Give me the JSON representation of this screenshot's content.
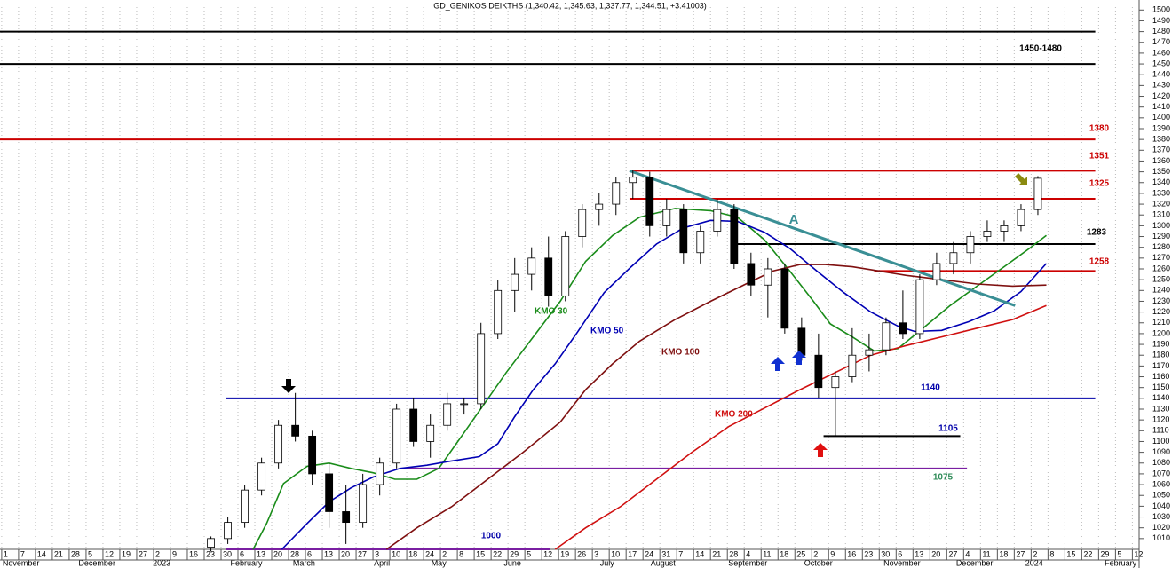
{
  "chart_data": {
    "type": "candlestick",
    "title": "GD_GENIKOS DEIKTHS (1,340.42, 1,345.63, 1,337.77, 1,344.51, +3.41003)",
    "xlim": [
      -0.1,
      67.4
    ],
    "ylim": [
      1000,
      1506
    ],
    "yticks": [
      1010,
      1020,
      1030,
      1040,
      1050,
      1060,
      1070,
      1080,
      1090,
      1100,
      1110,
      1120,
      1130,
      1140,
      1150,
      1160,
      1170,
      1180,
      1190,
      1200,
      1210,
      1220,
      1230,
      1240,
      1250,
      1260,
      1270,
      1280,
      1290,
      1300,
      1310,
      1320,
      1330,
      1340,
      1350,
      1360,
      1370,
      1380,
      1390,
      1400,
      1410,
      1420,
      1430,
      1440,
      1450,
      1460,
      1470,
      1480,
      1490,
      1500
    ],
    "xticks": [
      {
        "value": 0,
        "label": "1"
      },
      {
        "value": 1,
        "label": "7"
      },
      {
        "value": 2,
        "label": "14"
      },
      {
        "value": 3,
        "label": "21"
      },
      {
        "value": 4,
        "label": "28"
      },
      {
        "value": 5,
        "label": "5"
      },
      {
        "value": 6,
        "label": "12"
      },
      {
        "value": 7,
        "label": "19"
      },
      {
        "value": 8,
        "label": "27"
      },
      {
        "value": 9,
        "label": "2"
      },
      {
        "value": 10,
        "label": "9"
      },
      {
        "value": 11,
        "label": "16"
      },
      {
        "value": 12,
        "label": "23"
      },
      {
        "value": 13,
        "label": "30"
      },
      {
        "value": 14,
        "label": "6"
      },
      {
        "value": 15,
        "label": "13"
      },
      {
        "value": 16,
        "label": "20"
      },
      {
        "value": 17,
        "label": "28"
      },
      {
        "value": 18,
        "label": "6"
      },
      {
        "value": 19,
        "label": "13"
      },
      {
        "value": 20,
        "label": "20"
      },
      {
        "value": 21,
        "label": "27"
      },
      {
        "value": 22,
        "label": "3"
      },
      {
        "value": 23,
        "label": "10"
      },
      {
        "value": 24,
        "label": "18"
      },
      {
        "value": 25,
        "label": "24"
      },
      {
        "value": 26,
        "label": "2"
      },
      {
        "value": 27,
        "label": "8"
      },
      {
        "value": 28,
        "label": "15"
      },
      {
        "value": 29,
        "label": "22"
      },
      {
        "value": 30,
        "label": "29"
      },
      {
        "value": 31,
        "label": "5"
      },
      {
        "value": 32,
        "label": "12"
      },
      {
        "value": 33,
        "label": "19"
      },
      {
        "value": 34,
        "label": "26"
      },
      {
        "value": 35,
        "label": "3"
      },
      {
        "value": 36,
        "label": "10"
      },
      {
        "value": 37,
        "label": "17"
      },
      {
        "value": 38,
        "label": "24"
      },
      {
        "value": 39,
        "label": "31"
      },
      {
        "value": 40,
        "label": "7"
      },
      {
        "value": 41,
        "label": "14"
      },
      {
        "value": 42,
        "label": "21"
      },
      {
        "value": 43,
        "label": "28"
      },
      {
        "value": 44,
        "label": "4"
      },
      {
        "value": 45,
        "label": "11"
      },
      {
        "value": 46,
        "label": "18"
      },
      {
        "value": 47,
        "label": "25"
      },
      {
        "value": 48,
        "label": "2"
      },
      {
        "value": 49,
        "label": "9"
      },
      {
        "value": 50,
        "label": "16"
      },
      {
        "value": 51,
        "label": "23"
      },
      {
        "value": 52,
        "label": "30"
      },
      {
        "value": 53,
        "label": "6"
      },
      {
        "value": 54,
        "label": "13"
      },
      {
        "value": 55,
        "label": "20"
      },
      {
        "value": 56,
        "label": "27"
      },
      {
        "value": 57,
        "label": "4"
      },
      {
        "value": 58,
        "label": "11"
      },
      {
        "value": 59,
        "label": "18"
      },
      {
        "value": 60,
        "label": "27"
      },
      {
        "value": 61,
        "label": "2"
      },
      {
        "value": 62,
        "label": "8"
      },
      {
        "value": 63,
        "label": "15"
      },
      {
        "value": 64,
        "label": "22"
      },
      {
        "value": 65,
        "label": "29"
      },
      {
        "value": 66,
        "label": "5"
      },
      {
        "value": 67,
        "label": "12"
      }
    ],
    "month_labels": [
      {
        "value": 0,
        "label": "November"
      },
      {
        "value": 4.5,
        "label": "December"
      },
      {
        "value": 8.9,
        "label": "2023"
      },
      {
        "value": 13.5,
        "label": "February"
      },
      {
        "value": 17.2,
        "label": "March"
      },
      {
        "value": 22,
        "label": "April"
      },
      {
        "value": 25.4,
        "label": "May"
      },
      {
        "value": 29.7,
        "label": "June"
      },
      {
        "value": 35.4,
        "label": "July"
      },
      {
        "value": 38.4,
        "label": "August"
      },
      {
        "value": 43,
        "label": "September"
      },
      {
        "value": 47.5,
        "label": "October"
      },
      {
        "value": 52.2,
        "label": "November"
      },
      {
        "value": 56.5,
        "label": "December"
      },
      {
        "value": 60.6,
        "label": "2024"
      },
      {
        "value": 65.3,
        "label": "February"
      }
    ],
    "grid": true,
    "ohlc": {
      "color_up": "#ffffff",
      "color_down": "#000000",
      "x": [
        12.4,
        13.4,
        14.4,
        15.4,
        16.4,
        17.4,
        18.4,
        19.4,
        20.4,
        21.4,
        22.4,
        23.4,
        24.4,
        25.4,
        26.4,
        27.4,
        28.4,
        29.4,
        30.4,
        31.4,
        32.4,
        33.4,
        34.4,
        35.4,
        36.4,
        37.4,
        38.4,
        39.4,
        40.4,
        41.4,
        42.4,
        43.4,
        44.4,
        45.4,
        46.4,
        47.4,
        48.4,
        49.4,
        50.4,
        51.4,
        52.4,
        53.4,
        54.4,
        55.4,
        56.4,
        57.4,
        58.4,
        59.4,
        60.4,
        61.4
      ],
      "open": [
        1002,
        1010,
        1025,
        1055,
        1080,
        1115,
        1105,
        1070,
        1035,
        1025,
        1060,
        1080,
        1130,
        1100,
        1115,
        1135,
        1135,
        1200,
        1240,
        1255,
        1270,
        1235,
        1290,
        1315,
        1320,
        1340,
        1345,
        1300,
        1315,
        1275,
        1295,
        1315,
        1265,
        1245,
        1260,
        1205,
        1180,
        1150,
        1160,
        1180,
        1185,
        1210,
        1200,
        1250,
        1265,
        1275,
        1290,
        1295,
        1300,
        1315
      ],
      "high": [
        1012,
        1030,
        1060,
        1085,
        1120,
        1145,
        1110,
        1080,
        1060,
        1070,
        1085,
        1135,
        1140,
        1125,
        1145,
        1140,
        1210,
        1250,
        1270,
        1280,
        1290,
        1295,
        1320,
        1330,
        1345,
        1352,
        1350,
        1325,
        1320,
        1300,
        1325,
        1320,
        1275,
        1270,
        1265,
        1215,
        1200,
        1165,
        1205,
        1200,
        1215,
        1240,
        1255,
        1275,
        1285,
        1295,
        1305,
        1305,
        1320,
        1346
      ],
      "low": [
        998,
        1005,
        1020,
        1050,
        1075,
        1100,
        1060,
        1020,
        1005,
        1020,
        1050,
        1075,
        1095,
        1085,
        1110,
        1125,
        1130,
        1195,
        1220,
        1240,
        1225,
        1230,
        1280,
        1300,
        1310,
        1325,
        1290,
        1290,
        1265,
        1265,
        1290,
        1260,
        1235,
        1215,
        1200,
        1175,
        1140,
        1105,
        1155,
        1165,
        1180,
        1195,
        1195,
        1245,
        1255,
        1265,
        1285,
        1285,
        1295,
        1310
      ],
      "close": [
        1010,
        1025,
        1055,
        1080,
        1115,
        1105,
        1070,
        1035,
        1025,
        1060,
        1080,
        1130,
        1100,
        1115,
        1135,
        1135,
        1200,
        1240,
        1255,
        1270,
        1235,
        1290,
        1315,
        1320,
        1340,
        1345,
        1300,
        1315,
        1275,
        1295,
        1315,
        1265,
        1245,
        1260,
        1205,
        1180,
        1150,
        1160,
        1180,
        1185,
        1210,
        1200,
        1250,
        1265,
        1275,
        1290,
        1295,
        1300,
        1315,
        1344
      ]
    },
    "series": [
      {
        "name": "KMO 30",
        "color": "#1a8c1a",
        "x": [
          14.9,
          15.7,
          16.7,
          18.1,
          19.4,
          20.7,
          22.0,
          23.3,
          24.6,
          25.9,
          27.3,
          28.6,
          29.9,
          31.5,
          33.1,
          34.6,
          36.2,
          37.8,
          39.9,
          42.0,
          43.6,
          45.2,
          46.7,
          48.1,
          49.1,
          50.4,
          51.7,
          53.1,
          54.6,
          56.2,
          57.8,
          59.4,
          60.9,
          61.9
        ],
        "values": [
          1000,
          1024,
          1061,
          1077,
          1080,
          1075,
          1071,
          1065,
          1065,
          1075,
          1106,
          1135,
          1164,
          1197,
          1230,
          1267,
          1291,
          1308,
          1316,
          1314,
          1308,
          1287,
          1258,
          1230,
          1209,
          1197,
          1184,
          1186,
          1205,
          1226,
          1244,
          1262,
          1279,
          1291
        ]
      },
      {
        "name": "KMO 50",
        "color": "#0000b4",
        "x": [
          16.6,
          18.1,
          19.4,
          20.7,
          22.0,
          23.6,
          25.2,
          26.7,
          28.3,
          29.4,
          30.4,
          31.5,
          32.8,
          34.1,
          35.7,
          37.3,
          38.8,
          40.4,
          42.0,
          43.6,
          45.2,
          46.7,
          48.3,
          49.9,
          51.5,
          53.1,
          54.1,
          55.7,
          57.3,
          58.8,
          60.4,
          61.9
        ],
        "values": [
          1000,
          1024,
          1044,
          1057,
          1067,
          1075,
          1078,
          1082,
          1086,
          1098,
          1123,
          1148,
          1172,
          1201,
          1238,
          1262,
          1283,
          1298,
          1305,
          1304,
          1294,
          1279,
          1258,
          1238,
          1220,
          1207,
          1202,
          1203,
          1211,
          1221,
          1239,
          1265
        ]
      },
      {
        "name": "KMO 100",
        "color": "#7f1010",
        "x": [
          22.8,
          24.6,
          26.7,
          28.8,
          30.9,
          33.1,
          34.6,
          36.2,
          37.8,
          39.9,
          42.0,
          44.1,
          45.7,
          47.3,
          48.8,
          50.4,
          52.0,
          53.6,
          55.7,
          57.8,
          59.9,
          61.9
        ],
        "values": [
          1000,
          1020,
          1040,
          1065,
          1090,
          1118,
          1148,
          1172,
          1193,
          1213,
          1230,
          1246,
          1258,
          1264,
          1264,
          1262,
          1258,
          1254,
          1250,
          1246,
          1244,
          1245
        ]
      },
      {
        "name": "KMO 200",
        "color": "#d01010",
        "x": [
          32.8,
          34.6,
          36.7,
          38.8,
          40.9,
          43.1,
          45.2,
          47.3,
          49.4,
          51.5,
          53.6,
          55.7,
          57.8,
          59.9,
          61.9
        ],
        "values": [
          1000,
          1020,
          1040,
          1065,
          1090,
          1114,
          1131,
          1148,
          1164,
          1180,
          1189,
          1197,
          1205,
          1213,
          1226
        ]
      }
    ],
    "levels": [
      {
        "value": 1480,
        "x": [
          -0.1,
          64.8
        ],
        "color": "#000000"
      },
      {
        "value": 1450,
        "x": [
          -0.1,
          64.8
        ],
        "color": "#000000",
        "label": "1450-1480",
        "label_color": "#000000"
      },
      {
        "value": 1380,
        "x": [
          -0.1,
          64.8
        ],
        "color": "#cc0000",
        "label": "1380",
        "label_color": "#cc0000"
      },
      {
        "value": 1351,
        "x": [
          37.2,
          64.8
        ],
        "color": "#cc0000",
        "label": "1351",
        "label_color": "#cc0000"
      },
      {
        "value": 1325,
        "x": [
          37.2,
          64.8
        ],
        "color": "#cc0000",
        "label": "1325",
        "label_color": "#cc0000"
      },
      {
        "value": 1283,
        "x": [
          43.5,
          64.8
        ],
        "color": "#000000",
        "label": "1283",
        "label_color": "#000000"
      },
      {
        "value": 1258,
        "x": [
          51.7,
          64.8
        ],
        "color": "#cc0000",
        "label": "1258",
        "label_color": "#cc0000"
      },
      {
        "value": 1140,
        "x": [
          13.3,
          64.8
        ],
        "color": "#0000aa",
        "label": "1140",
        "label_color": "#0000aa"
      },
      {
        "value": 1105,
        "x": [
          48.7,
          56.8
        ],
        "color": "#000000",
        "label": "1105",
        "label_color": "#0000aa"
      },
      {
        "value": 1075,
        "x": [
          23.8,
          57.2
        ],
        "color": "#7a1fa2",
        "label": "1075",
        "label_color": "#2e8b57"
      },
      {
        "value": 1000,
        "x": [
          13.3,
          32.5
        ],
        "color": "#7a1fa2",
        "label": "1000",
        "label_color": "#0000aa"
      }
    ],
    "trendline": {
      "label": "A",
      "color": "#3a8f95",
      "x": [
        37.2,
        60.05
      ],
      "values": [
        1351,
        1226
      ]
    }
  }
}
